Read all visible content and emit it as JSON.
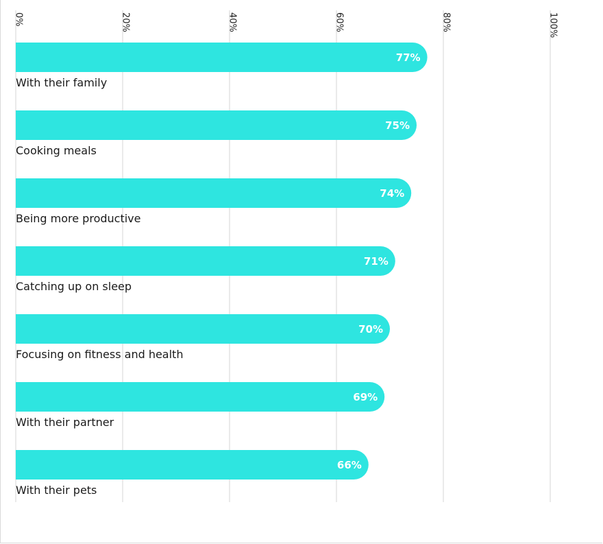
{
  "chart_data": {
    "type": "bar",
    "orientation": "horizontal",
    "categories": [
      "With their family",
      "Cooking meals",
      "Being more productive",
      "Catching up on sleep",
      "Focusing on fitness and health",
      "With their partner",
      "With their pets"
    ],
    "values": [
      77,
      75,
      74,
      71,
      70,
      69,
      66
    ],
    "value_labels": [
      "77%",
      "75%",
      "74%",
      "71%",
      "70%",
      "69%",
      "66%"
    ],
    "x_ticks": [
      "0%",
      "20%",
      "40%",
      "60%",
      "80%",
      "100%"
    ],
    "xlim": [
      0,
      100
    ],
    "grid": true,
    "bar_color": "#2ee5e0",
    "grid_color": "#e4e4e4"
  }
}
